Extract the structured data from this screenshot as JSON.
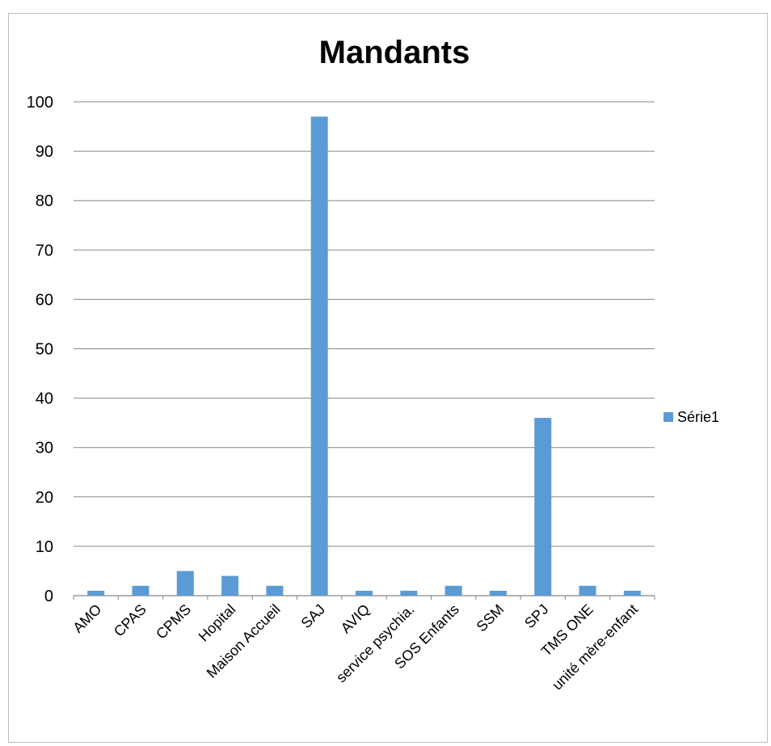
{
  "chart_data": {
    "type": "bar",
    "title": "Mandants",
    "categories": [
      "AMO",
      "CPAS",
      "CPMS",
      "Hopital",
      "Maison Accueil",
      "SAJ",
      "AVIQ",
      "service psychia.",
      "SOS Enfants",
      "SSM",
      "SPJ",
      "TMS ONE",
      "unité mère-enfant"
    ],
    "series": [
      {
        "name": "Série1",
        "values": [
          1,
          2,
          5,
          4,
          2,
          97,
          1,
          1,
          2,
          1,
          36,
          2,
          1
        ],
        "color": "#5b9bd5"
      }
    ],
    "ylim": [
      0,
      100
    ],
    "yticks": [
      0,
      10,
      20,
      30,
      40,
      50,
      60,
      70,
      80,
      90,
      100
    ],
    "grid": true,
    "gridline_color": "#868686",
    "legend_position": "right"
  }
}
